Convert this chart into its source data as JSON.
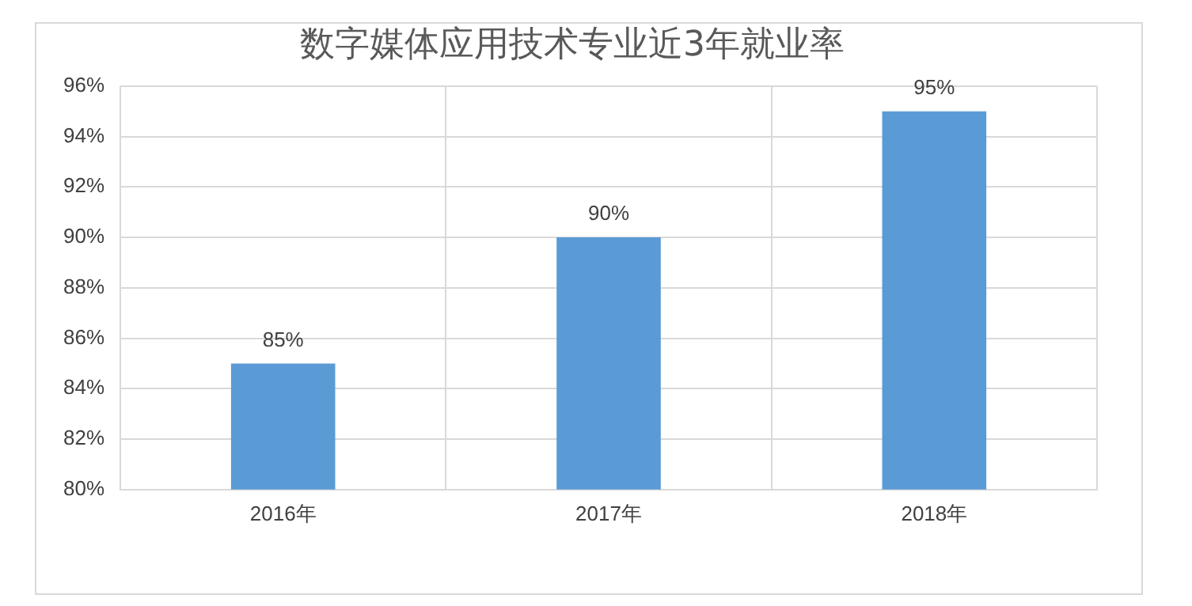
{
  "chart_data": {
    "type": "bar",
    "title": "数字媒体应用技术专业近3年就业率",
    "categories": [
      "2016年",
      "2017年",
      "2018年"
    ],
    "values": [
      85,
      90,
      95
    ],
    "color": "#5b9bd5",
    "value_labels": [
      "85%",
      "90%",
      "95%"
    ],
    "ylim": [
      80,
      96
    ],
    "yticks": [
      {
        "value": 80,
        "label": "80%"
      },
      {
        "value": 82,
        "label": "82%"
      },
      {
        "value": 84,
        "label": "84%"
      },
      {
        "value": 86,
        "label": "86%"
      },
      {
        "value": 88,
        "label": "88%"
      },
      {
        "value": 90,
        "label": "90%"
      },
      {
        "value": 92,
        "label": "92%"
      },
      {
        "value": 94,
        "label": "94%"
      },
      {
        "value": 96,
        "label": "96%"
      }
    ],
    "grid": true,
    "legend": false
  }
}
